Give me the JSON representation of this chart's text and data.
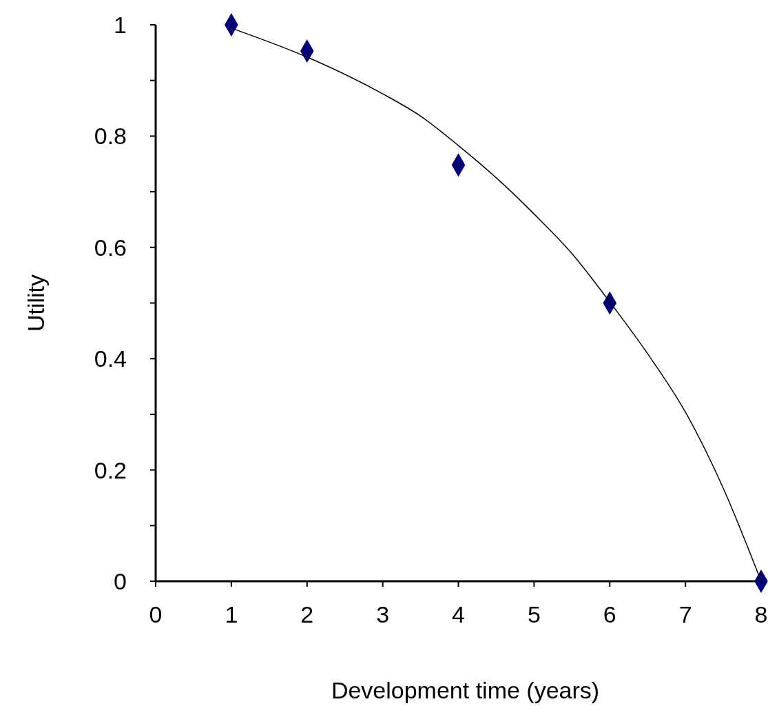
{
  "chart_data": {
    "type": "scatter",
    "xlabel": "Development time (years)",
    "ylabel": "Utility",
    "xlim": [
      0,
      8
    ],
    "xticks": [
      0,
      1,
      2,
      3,
      4,
      5,
      6,
      7,
      8
    ],
    "ylim": [
      0,
      1
    ],
    "yticks": [
      0,
      {
        "value": 0.1,
        "label": null
      },
      0.2,
      {
        "value": 0.3,
        "label": null
      },
      0.4,
      {
        "value": 0.5,
        "label": null
      },
      0.6,
      {
        "value": 0.7,
        "label": null
      },
      0.8,
      {
        "value": 0.9,
        "label": null
      },
      1
    ],
    "grid": false,
    "series": [
      {
        "type": "line",
        "color": "#000000",
        "marker": "none",
        "line_style": "solid",
        "x": [
          1,
          2,
          3,
          3.5,
          4,
          4.5,
          5,
          5.5,
          6,
          6.5,
          7,
          7.5,
          8
        ],
        "values": [
          0.994,
          0.942,
          0.876,
          0.836,
          0.783,
          0.725,
          0.66,
          0.589,
          0.502,
          0.409,
          0.304,
          0.167,
          0
        ]
      },
      {
        "color": "#00007f",
        "marker": "diamond",
        "x": [
          1,
          2,
          4,
          6,
          8
        ],
        "values": [
          1,
          0.953,
          0.748,
          0.5,
          0
        ]
      }
    ]
  }
}
